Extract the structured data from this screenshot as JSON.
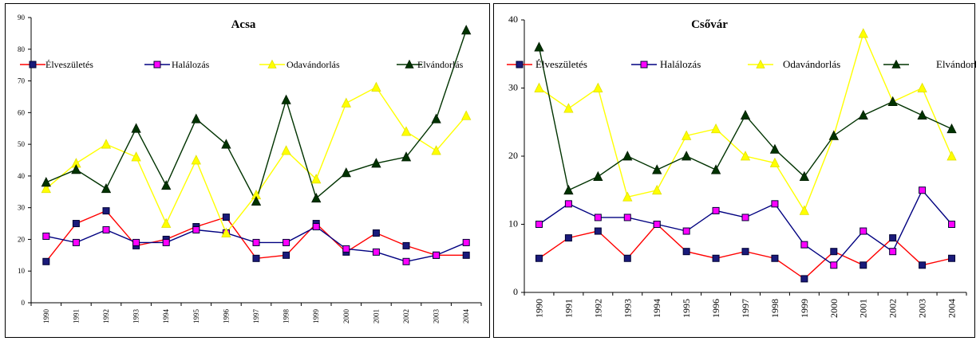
{
  "chart_data": [
    {
      "type": "line",
      "title": "Acsa",
      "categories": [
        "1990",
        "1991",
        "1992",
        "1993",
        "1994",
        "1995",
        "1996",
        "1997",
        "1998",
        "1999",
        "2000",
        "2001",
        "2002",
        "2003",
        "2004"
      ],
      "ylim": [
        0,
        90
      ],
      "yticks": [
        0,
        10,
        20,
        30,
        40,
        50,
        60,
        70,
        80,
        90
      ],
      "series": [
        {
          "name": "Élveszületés",
          "color": "#ff0000",
          "marker": "square",
          "marker_fill": "#1a1a7a",
          "values": [
            13,
            25,
            29,
            18,
            20,
            24,
            27,
            14,
            15,
            25,
            16,
            22,
            18,
            15,
            15
          ]
        },
        {
          "name": "Halálozás",
          "color": "#000080",
          "marker": "square",
          "marker_fill": "#ff00ff",
          "values": [
            21,
            19,
            23,
            19,
            19,
            23,
            22,
            19,
            19,
            24,
            17,
            16,
            13,
            15,
            19
          ]
        },
        {
          "name": "Odavándorlás",
          "color": "#ffff00",
          "marker": "triangle",
          "marker_fill": "#ffff00",
          "values": [
            36,
            44,
            50,
            46,
            25,
            45,
            22,
            34,
            48,
            39,
            63,
            68,
            54,
            48,
            59
          ]
        },
        {
          "name": "Elvándorlás",
          "color": "#003300",
          "marker": "triangle",
          "marker_fill": "#003300",
          "values": [
            38,
            42,
            36,
            55,
            37,
            58,
            50,
            32,
            64,
            33,
            41,
            44,
            46,
            58,
            86
          ]
        }
      ]
    },
    {
      "type": "line",
      "title": "Csővár",
      "categories": [
        "1990",
        "1991",
        "1992",
        "1993",
        "1994",
        "1995",
        "1996",
        "1997",
        "1998",
        "1999",
        "2000",
        "2001",
        "2002",
        "2003",
        "2004"
      ],
      "ylim": [
        0,
        40
      ],
      "yticks": [
        0,
        10,
        20,
        30,
        40
      ],
      "series": [
        {
          "name": "Élveszületés",
          "color": "#ff0000",
          "marker": "square",
          "marker_fill": "#1a1a7a",
          "values": [
            5,
            8,
            9,
            5,
            10,
            6,
            5,
            6,
            5,
            2,
            6,
            4,
            8,
            4,
            5
          ]
        },
        {
          "name": "Halálozás",
          "color": "#000080",
          "marker": "square",
          "marker_fill": "#ff00ff",
          "values": [
            10,
            13,
            11,
            11,
            10,
            9,
            12,
            11,
            13,
            7,
            4,
            9,
            6,
            15,
            10
          ]
        },
        {
          "name": "Odavándorlás",
          "color": "#ffff00",
          "marker": "triangle",
          "marker_fill": "#ffff00",
          "values": [
            30,
            27,
            30,
            14,
            15,
            23,
            24,
            20,
            19,
            12,
            23,
            38,
            28,
            30,
            20
          ]
        },
        {
          "name": "Elvándorlás",
          "color": "#003300",
          "marker": "triangle",
          "marker_fill": "#003300",
          "values": [
            36,
            15,
            17,
            20,
            18,
            20,
            18,
            26,
            21,
            17,
            23,
            26,
            28,
            26,
            24
          ]
        }
      ]
    }
  ]
}
